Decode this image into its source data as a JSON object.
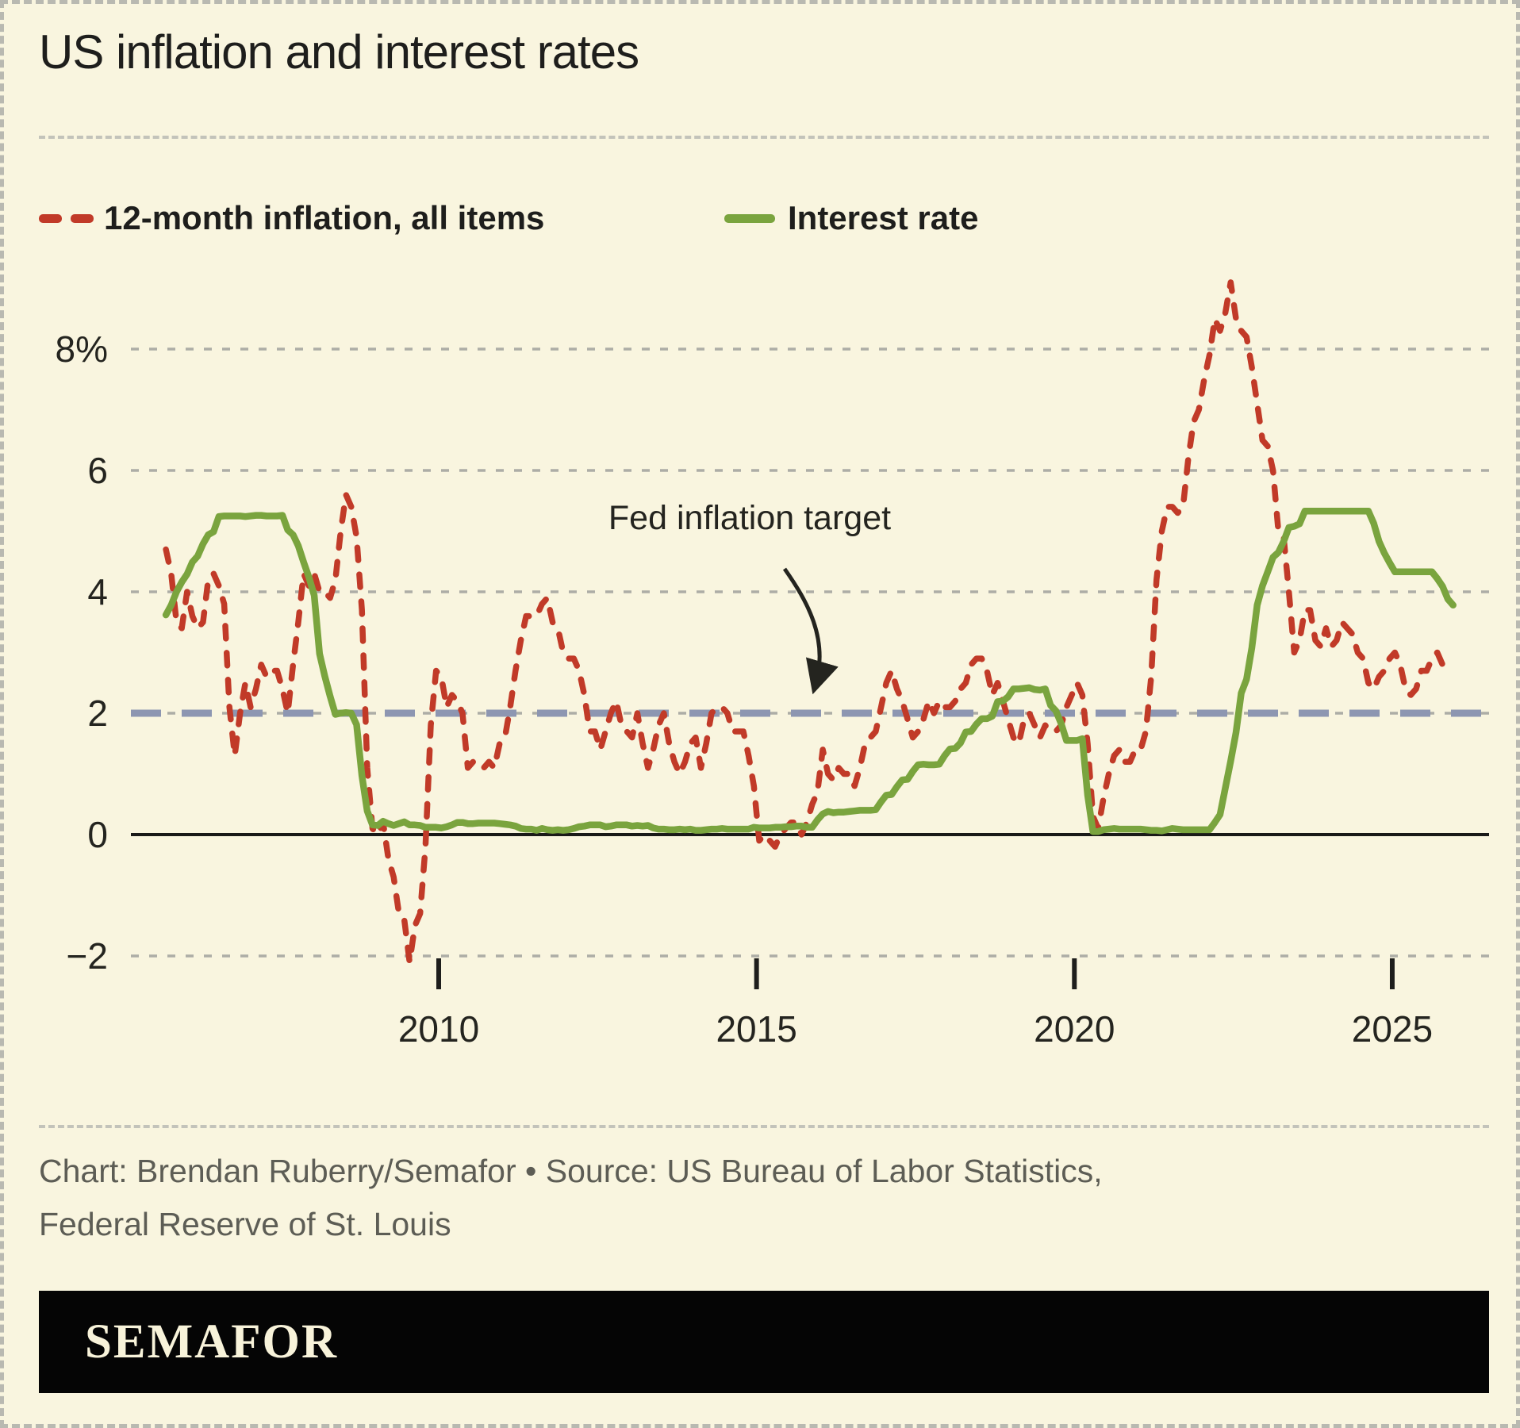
{
  "header": {
    "title": "US inflation and interest rates"
  },
  "footer": {
    "credit_line1": "Chart: Brendan Ruberry/Semafor • Source: US Bureau of Labor Statistics,",
    "credit_line2": "Federal Reserve of St. Louis",
    "logo_text": "SEMAFOR"
  },
  "colors": {
    "background": "#f9f5df",
    "inflation_red": "#c13a28",
    "interest_green": "#7aa43e",
    "target_blue": "#8d96b1",
    "grid_gray": "#adada6",
    "logo_bar_black": "#050505"
  },
  "chart_data": {
    "type": "line",
    "title": "US inflation and interest rates",
    "xlabel": "",
    "ylabel": "percent",
    "grid": true,
    "xlim": [
      2005.1,
      2026.55
    ],
    "ylim": [
      -2.8,
      9.6
    ],
    "x_axis": {
      "tick_values": [
        2010,
        2015,
        2020,
        2025
      ],
      "tick_labels": [
        "2010",
        "2015",
        "2020",
        "2025"
      ]
    },
    "y_axis": {
      "tick_values": [
        8,
        6,
        4,
        2,
        0,
        -2
      ],
      "tick_labels": [
        "8%",
        "6",
        "4",
        "2",
        "0",
        "−2"
      ]
    },
    "target_line": {
      "label": "Fed inflation target",
      "value": 2,
      "color": "#8d96b1"
    },
    "series": [
      {
        "name": "12-month inflation, all items",
        "color": "#c13a28",
        "style": "dashed",
        "start_year": 2005,
        "start_month": 9,
        "frequency": "monthly",
        "values": [
          4.7,
          4.3,
          3.5,
          3.4,
          4.0,
          3.6,
          3.4,
          3.5,
          4.2,
          4.3,
          4.1,
          3.8,
          2.1,
          1.3,
          2.0,
          2.5,
          2.1,
          2.4,
          2.8,
          2.6,
          2.7,
          2.7,
          2.4,
          2.0,
          2.8,
          3.5,
          4.3,
          4.1,
          4.3,
          4.0,
          4.0,
          3.9,
          4.2,
          5.0,
          5.6,
          5.4,
          4.9,
          3.7,
          1.1,
          0.1,
          0.0,
          0.2,
          -0.4,
          -0.7,
          -1.3,
          -1.4,
          -2.1,
          -1.5,
          -1.3,
          -0.2,
          1.8,
          2.7,
          2.6,
          2.1,
          2.3,
          2.2,
          2.0,
          1.1,
          1.2,
          1.1,
          1.1,
          1.2,
          1.1,
          1.5,
          1.6,
          2.1,
          2.7,
          3.2,
          3.6,
          3.6,
          3.6,
          3.8,
          3.9,
          3.5,
          3.4,
          3.0,
          2.9,
          2.9,
          2.7,
          2.3,
          1.7,
          1.7,
          1.4,
          1.7,
          2.0,
          2.2,
          1.8,
          1.7,
          1.6,
          2.0,
          1.5,
          1.1,
          1.4,
          1.8,
          2.0,
          1.5,
          1.2,
          1.0,
          1.2,
          1.5,
          1.6,
          1.1,
          1.5,
          2.0,
          2.1,
          2.1,
          2.0,
          1.7,
          1.7,
          1.7,
          1.3,
          0.8,
          -0.1,
          0.0,
          -0.1,
          -0.2,
          0.0,
          0.1,
          0.2,
          0.2,
          0.0,
          0.2,
          0.5,
          0.7,
          1.4,
          1.0,
          0.9,
          1.1,
          1.0,
          1.0,
          0.8,
          1.1,
          1.5,
          1.6,
          1.7,
          2.1,
          2.5,
          2.7,
          2.4,
          2.2,
          1.9,
          1.6,
          1.7,
          1.9,
          2.2,
          2.0,
          2.2,
          2.1,
          2.1,
          2.2,
          2.4,
          2.5,
          2.8,
          2.9,
          2.9,
          2.7,
          2.3,
          2.5,
          2.2,
          1.9,
          1.6,
          1.5,
          1.9,
          2.0,
          1.8,
          1.6,
          1.8,
          1.7,
          1.7,
          1.8,
          2.1,
          2.3,
          2.5,
          2.3,
          1.5,
          0.3,
          0.1,
          0.6,
          1.0,
          1.3,
          1.4,
          1.2,
          1.2,
          1.4,
          1.4,
          1.7,
          2.6,
          4.2,
          5.0,
          5.4,
          5.4,
          5.3,
          5.4,
          6.2,
          6.8,
          7.0,
          7.5,
          7.9,
          8.5,
          8.3,
          8.6,
          9.1,
          8.5,
          8.3,
          8.2,
          7.7,
          7.1,
          6.5,
          6.4,
          6.0,
          5.0,
          4.9,
          4.0,
          3.0,
          3.2,
          3.7,
          3.7,
          3.2,
          3.1,
          3.4,
          3.1,
          3.2,
          3.5,
          3.4,
          3.3,
          3.0,
          2.9,
          2.5,
          2.4,
          2.6,
          2.7,
          2.9,
          3.0,
          2.8,
          2.4,
          2.3,
          2.4,
          2.7,
          2.7,
          2.9,
          3.0,
          2.8
        ]
      },
      {
        "name": "Interest rate",
        "color": "#7aa43e",
        "style": "solid",
        "start_year": 2005,
        "start_month": 9,
        "frequency": "monthly",
        "values": [
          3.62,
          3.78,
          4.0,
          4.16,
          4.29,
          4.49,
          4.59,
          4.79,
          4.94,
          4.99,
          5.24,
          5.25,
          5.25,
          5.25,
          5.25,
          5.24,
          5.25,
          5.26,
          5.26,
          5.25,
          5.25,
          5.25,
          5.26,
          5.02,
          4.94,
          4.76,
          4.49,
          4.24,
          3.94,
          2.98,
          2.61,
          2.28,
          1.98,
          2.0,
          2.01,
          2.0,
          1.81,
          0.97,
          0.39,
          0.16,
          0.15,
          0.22,
          0.18,
          0.15,
          0.18,
          0.21,
          0.16,
          0.16,
          0.15,
          0.12,
          0.12,
          0.12,
          0.11,
          0.13,
          0.16,
          0.2,
          0.2,
          0.18,
          0.18,
          0.19,
          0.19,
          0.19,
          0.19,
          0.18,
          0.17,
          0.16,
          0.14,
          0.1,
          0.09,
          0.09,
          0.07,
          0.1,
          0.08,
          0.07,
          0.08,
          0.07,
          0.08,
          0.1,
          0.13,
          0.14,
          0.16,
          0.16,
          0.16,
          0.13,
          0.14,
          0.16,
          0.16,
          0.16,
          0.14,
          0.15,
          0.14,
          0.15,
          0.11,
          0.09,
          0.09,
          0.08,
          0.08,
          0.09,
          0.08,
          0.09,
          0.07,
          0.07,
          0.08,
          0.09,
          0.09,
          0.1,
          0.09,
          0.09,
          0.09,
          0.09,
          0.09,
          0.12,
          0.11,
          0.11,
          0.11,
          0.12,
          0.12,
          0.13,
          0.13,
          0.14,
          0.14,
          0.12,
          0.12,
          0.24,
          0.34,
          0.38,
          0.36,
          0.37,
          0.37,
          0.38,
          0.39,
          0.4,
          0.4,
          0.4,
          0.41,
          0.54,
          0.65,
          0.66,
          0.79,
          0.9,
          0.91,
          1.04,
          1.15,
          1.16,
          1.15,
          1.15,
          1.16,
          1.3,
          1.41,
          1.42,
          1.51,
          1.69,
          1.7,
          1.82,
          1.91,
          1.91,
          1.95,
          2.19,
          2.2,
          2.27,
          2.4,
          2.4,
          2.41,
          2.42,
          2.39,
          2.38,
          2.4,
          2.13,
          2.04,
          1.83,
          1.55,
          1.55,
          1.55,
          1.58,
          0.65,
          0.05,
          0.05,
          0.08,
          0.09,
          0.1,
          0.09,
          0.09,
          0.09,
          0.09,
          0.09,
          0.08,
          0.07,
          0.07,
          0.06,
          0.08,
          0.1,
          0.09,
          0.08,
          0.08,
          0.08,
          0.08,
          0.08,
          0.08,
          0.2,
          0.33,
          0.77,
          1.21,
          1.68,
          2.33,
          2.56,
          3.08,
          3.78,
          4.1,
          4.33,
          4.57,
          4.65,
          4.83,
          5.06,
          5.08,
          5.12,
          5.33,
          5.33,
          5.33,
          5.33,
          5.33,
          5.33,
          5.33,
          5.33,
          5.33,
          5.33,
          5.33,
          5.33,
          5.33,
          5.13,
          4.83,
          4.64,
          4.48,
          4.33,
          4.33,
          4.33,
          4.33,
          4.33,
          4.33,
          4.33,
          4.33,
          4.22,
          4.09,
          3.88,
          3.78
        ]
      }
    ]
  }
}
